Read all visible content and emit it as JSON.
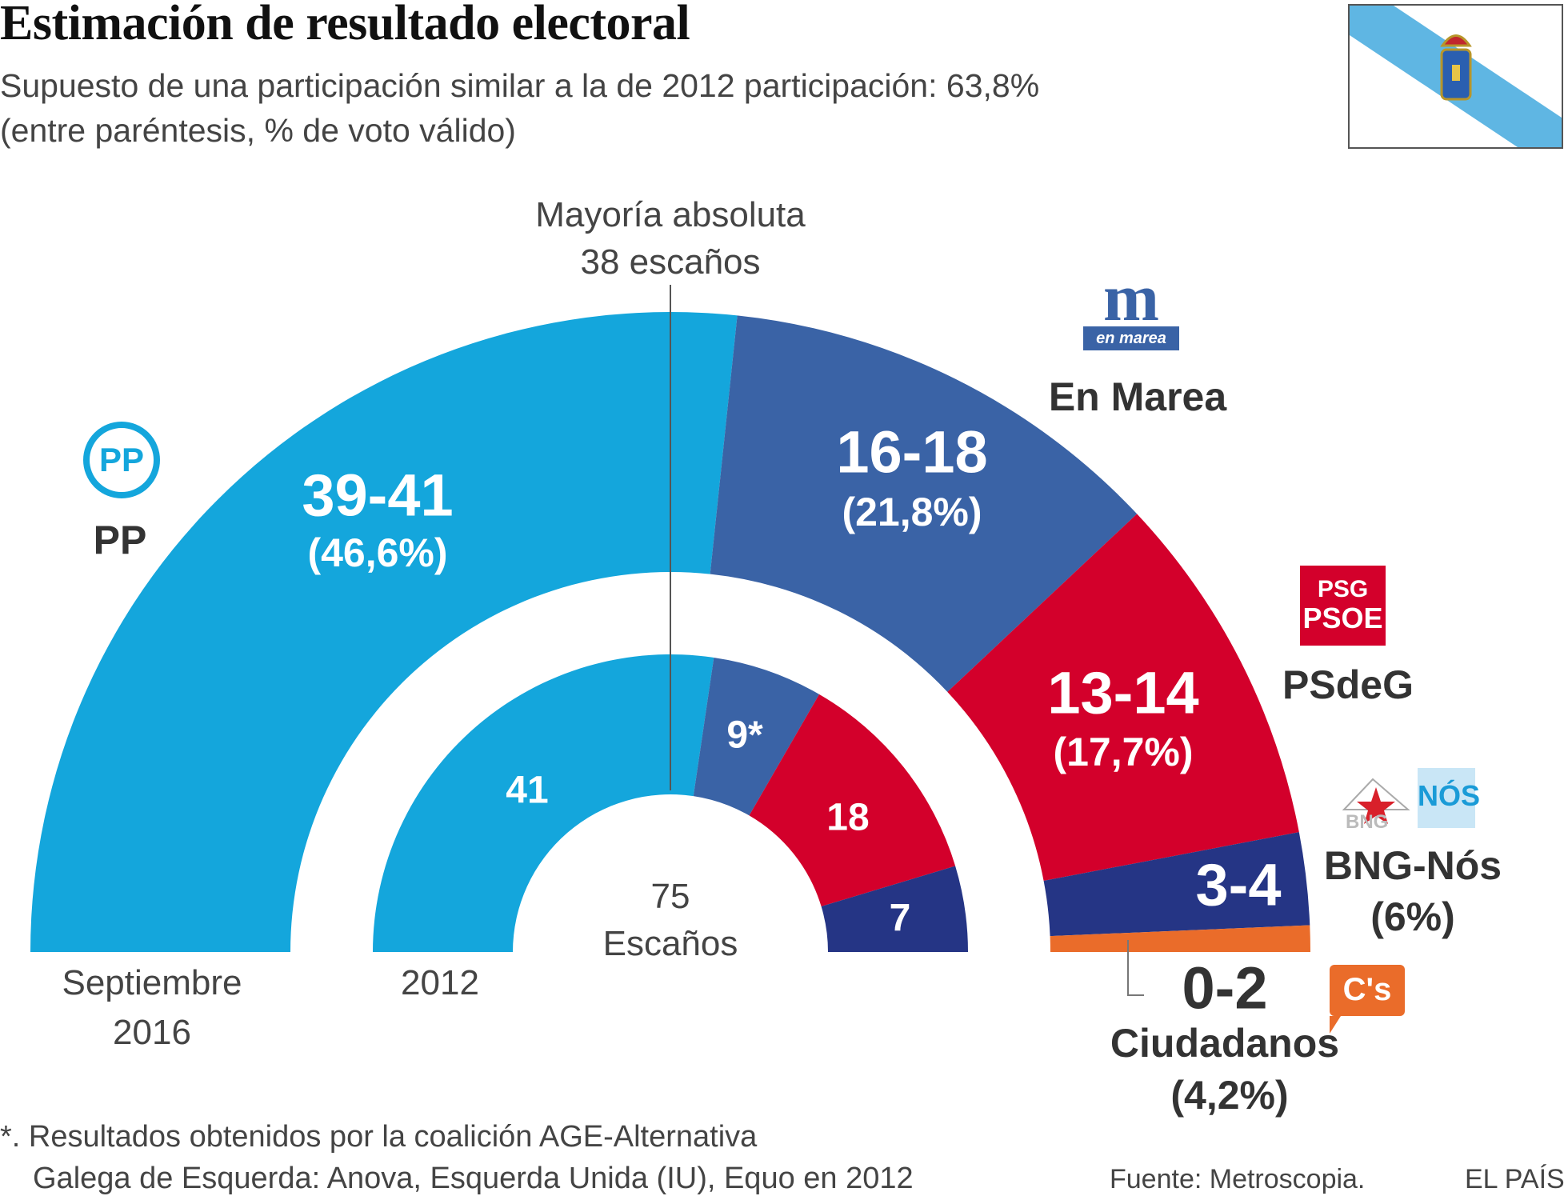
{
  "title": "Estimación de resultado electoral",
  "subtitle": [
    "Supuesto de una participación similar a la de 2012 participación: 63,8%",
    "(entre paréntesis, % de voto válido)"
  ],
  "majority": [
    "Mayoría absoluta",
    "38 escaños"
  ],
  "center_label": [
    "75",
    "Escaños"
  ],
  "ring_labels": {
    "outer": [
      "Septiembre",
      "2016"
    ],
    "inner": "2012"
  },
  "parties": {
    "pp": {
      "name": "PP",
      "seats": "39-41",
      "pct": "(46,6%)",
      "logo_text": "PP"
    },
    "enmarea": {
      "name": "En Marea",
      "seats": "16-18",
      "pct": "(21,8%)",
      "logo_text": "en marea"
    },
    "psdeg": {
      "name": "PSdeG",
      "seats": "13-14",
      "pct": "(17,7%)",
      "logo_text": [
        "PSG",
        "PSOE"
      ]
    },
    "bng": {
      "name": "BNG-Nós",
      "seats": "3-4",
      "pct": "(6%)",
      "logo_text": [
        "BNG",
        "NÓS"
      ]
    },
    "cs": {
      "name": "Ciudadanos",
      "seats": "0-2",
      "pct": "(4,2%)",
      "logo_text": "C's"
    }
  },
  "footnote": [
    "*. Resultados obtenidos por la coalición AGE-Alternativa",
    "Galega de Esquerda: Anova, Esquerda Unida (IU), Equo en 2012"
  ],
  "source": "Fuente: Metroscopia.",
  "brand": "EL PAÍS",
  "chart_data": {
    "type": "pie",
    "subtype": "parliament-semicircle",
    "total_seats": 75,
    "majority_seats": 38,
    "series": [
      {
        "name": "Septiembre 2016",
        "categories": [
          "PP",
          "En Marea",
          "PSdeG",
          "BNG-Nós",
          "Ciudadanos"
        ],
        "values": [
          40,
          17,
          13.5,
          3.5,
          1
        ],
        "ranges": [
          "39-41",
          "16-18",
          "13-14",
          "3-4",
          "0-2"
        ],
        "vote_pct": [
          46.6,
          21.8,
          17.7,
          6,
          4.2
        ]
      },
      {
        "name": "2012",
        "categories": [
          "PP",
          "AGE*",
          "PSdeG",
          "BNG"
        ],
        "values": [
          41,
          9,
          18,
          7
        ],
        "labels": [
          "41",
          "9*",
          "18",
          "7"
        ]
      }
    ],
    "colors": {
      "PP": "#14a6dc",
      "En Marea": "#3a63a6",
      "PSdeG": "#d3002b",
      "BNG": "#253585",
      "Ciudadanos": "#ea6c2a"
    }
  }
}
